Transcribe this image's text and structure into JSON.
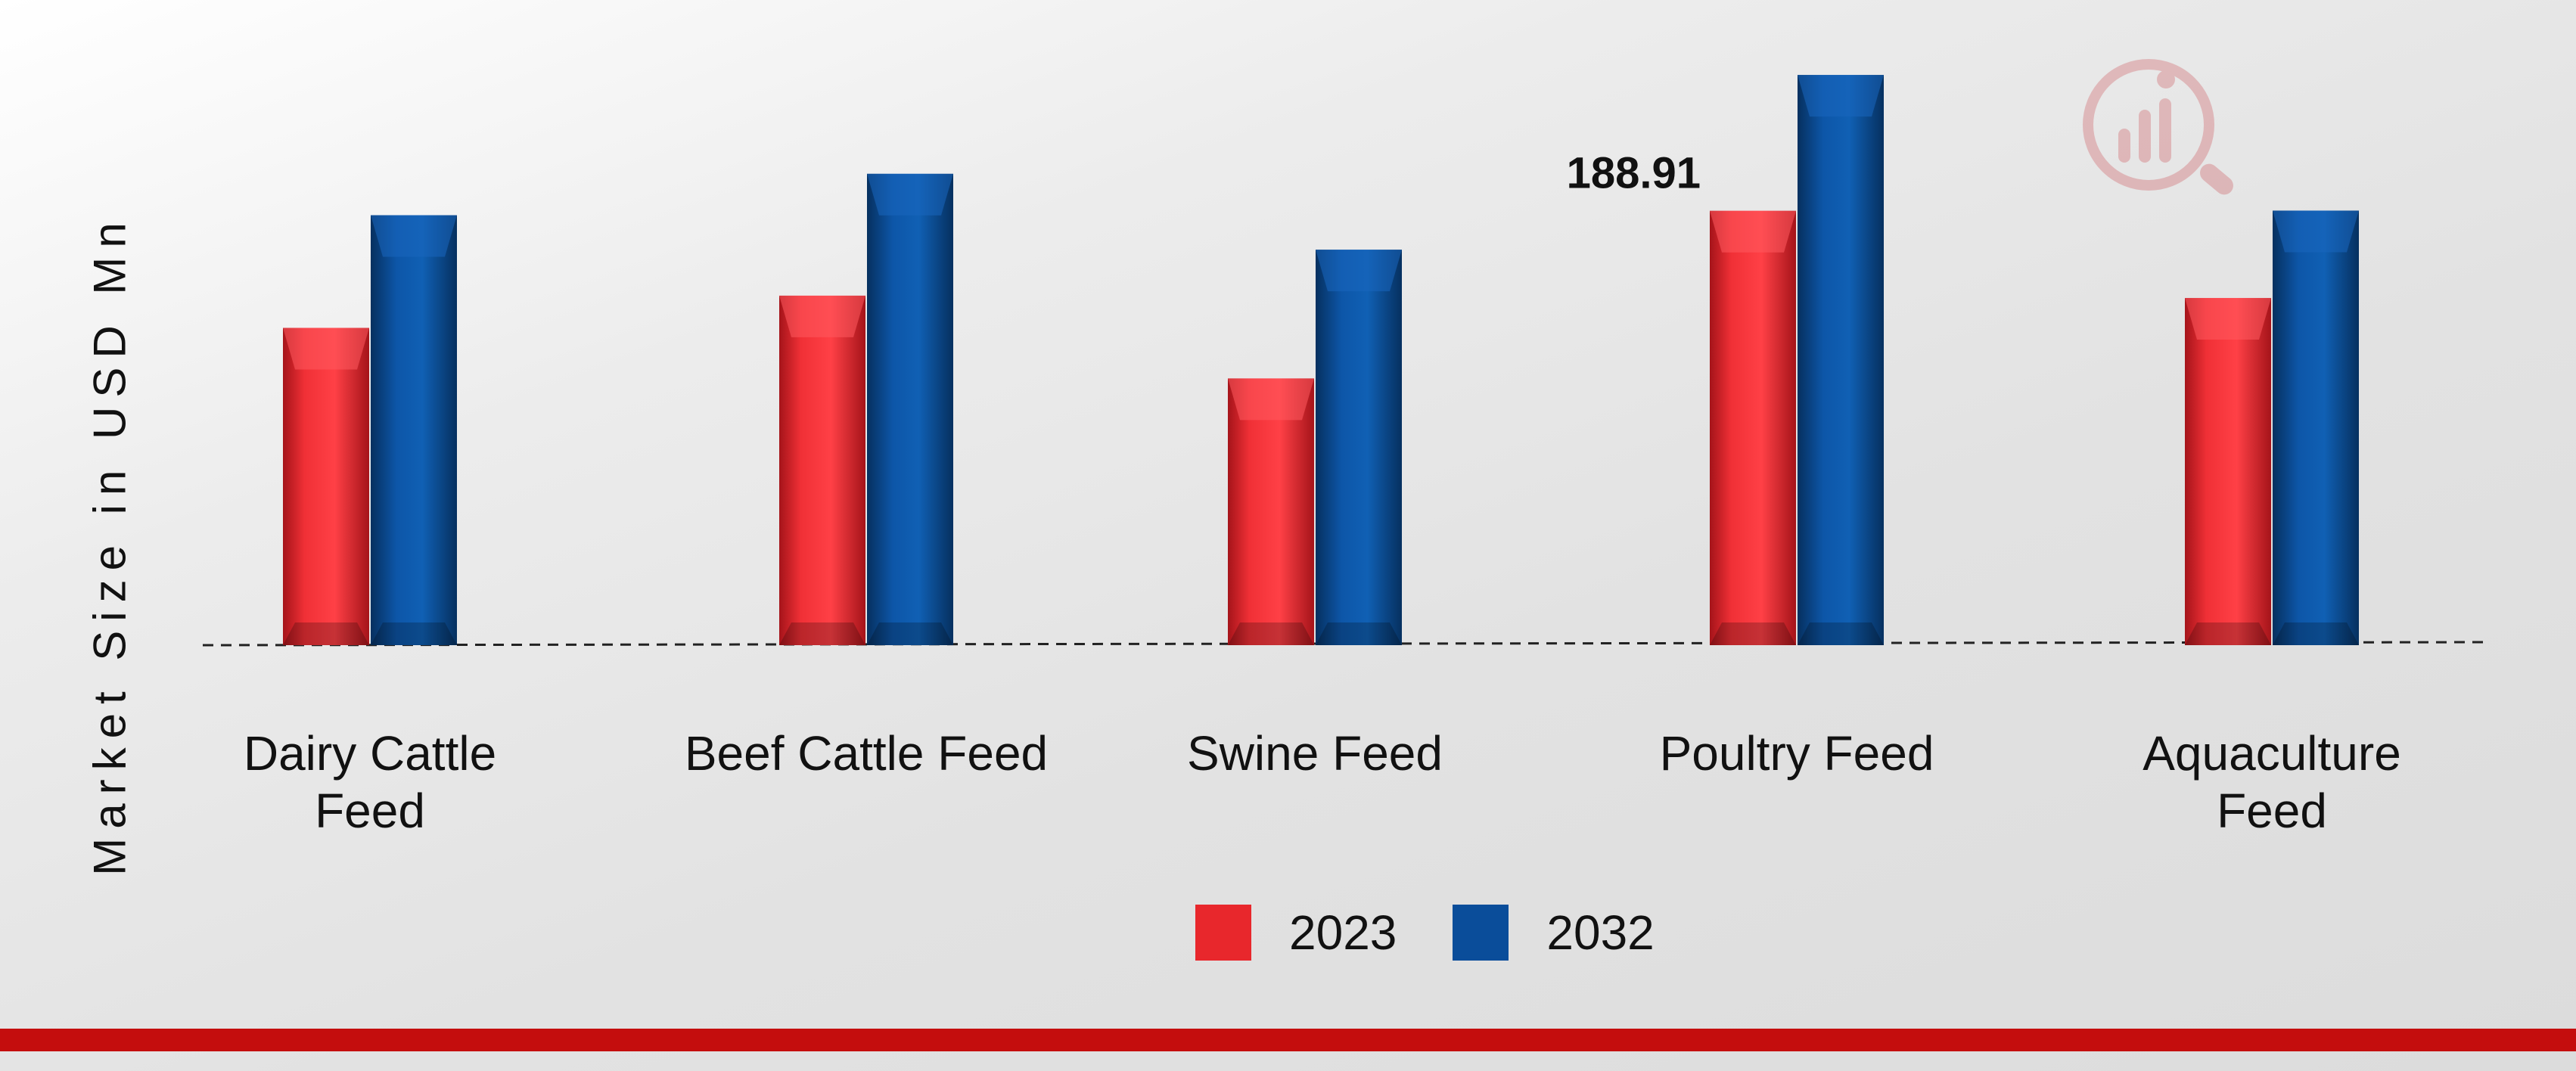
{
  "chart_data": {
    "type": "bar",
    "title": "",
    "xlabel": "",
    "ylabel": "Market Size in USD Mn",
    "ylim": [
      0,
      250
    ],
    "grid": false,
    "baseline_style": "dashed",
    "legend_position": "bottom-center",
    "categories": [
      "Dairy Cattle Feed",
      "Beef Cattle Feed",
      "Swine Feed",
      "Poultry Feed",
      "Aquaculture Feed"
    ],
    "category_labels": [
      [
        "Dairy Cattle",
        "Feed"
      ],
      [
        "Beef Cattle Feed"
      ],
      [
        "Swine Feed"
      ],
      [
        "Poultry Feed"
      ],
      [
        "Aquaculture",
        "Feed"
      ]
    ],
    "series": [
      {
        "name": "2023",
        "color": "#e8272c",
        "values": [
          138,
          152,
          116,
          188.91,
          151
        ]
      },
      {
        "name": "2032",
        "color": "#0a4d9a",
        "values": [
          187,
          205,
          172,
          248,
          189
        ]
      }
    ],
    "annotations": [
      {
        "series": "2023",
        "category": "Poultry Feed",
        "text": "188.91"
      }
    ]
  }
}
